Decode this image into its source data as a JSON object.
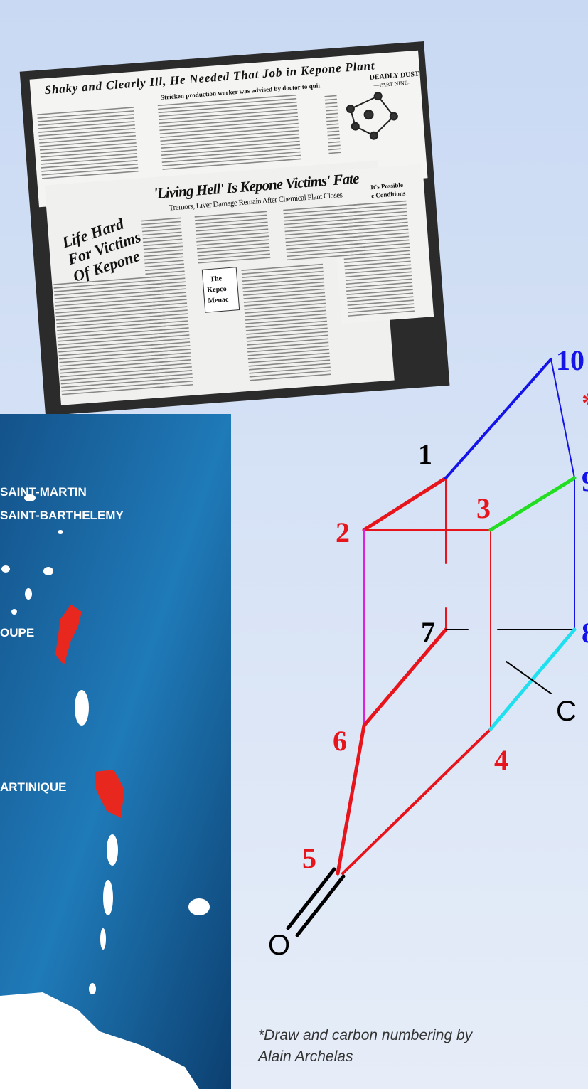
{
  "newspaper": {
    "headline": "Shaky and Clearly Ill, He Needed That Job in Kepone Plant",
    "subhead": "Stricken production worker was advised by doctor to quit",
    "series": "DEADLY DUST",
    "part": "—PART NINE—",
    "side_headline": [
      "Life Hard",
      "For Victims",
      "Of Kepone"
    ],
    "main_headline": "'Living Hell' Is Kepone Victims' Fate",
    "deck": "Tremors, Liver Damage Remain After Chemical Plant Closes",
    "sidebar": [
      "It's Possible",
      "e Conditions"
    ],
    "box": [
      "The",
      "Kepco",
      "Menac"
    ]
  },
  "map": {
    "labels": [
      "SAINT-MARTIN",
      "SAINT-BARTHELEMY",
      "OUPE",
      "ARTINIQUE"
    ]
  },
  "diagram": {
    "atoms": [
      "1",
      "2",
      "3",
      "4",
      "5",
      "6",
      "7",
      "8",
      "9",
      "10"
    ],
    "substituent": "C",
    "oxygen": "O",
    "asterisk": "*"
  },
  "caption": [
    "*Draw and carbon numbering by",
    "Alain Archelas"
  ]
}
